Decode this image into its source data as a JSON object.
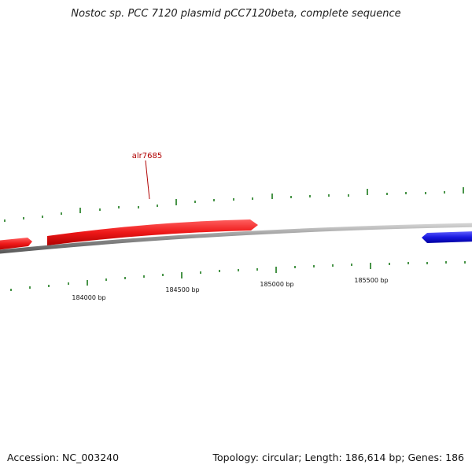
{
  "title": "Nostoc sp. PCC 7120 plasmid pCC7120beta, complete sequence",
  "footer": {
    "accession": "Accession: NC_003240",
    "topology": "Topology: circular; Length: 186,614 bp; Genes: 186"
  },
  "genes": [
    {
      "name": "",
      "strand": "forward",
      "start": 183600,
      "end": 183790,
      "color": "#e8141c"
    },
    {
      "name": "alr7685",
      "strand": "forward",
      "start": 183880,
      "end": 184830,
      "color": "#e8141c"
    },
    {
      "name": "",
      "strand": "reverse",
      "start": 185770,
      "end": 186050,
      "color": "#1414d8"
    }
  ],
  "scale_labels": [
    "184000 bp",
    "184500 bp",
    "185000 bp",
    "185500 bp"
  ],
  "colors": {
    "backbone": "#8a8a8a",
    "ticks": "#1a7a1a",
    "gene_label": "#b00000"
  }
}
